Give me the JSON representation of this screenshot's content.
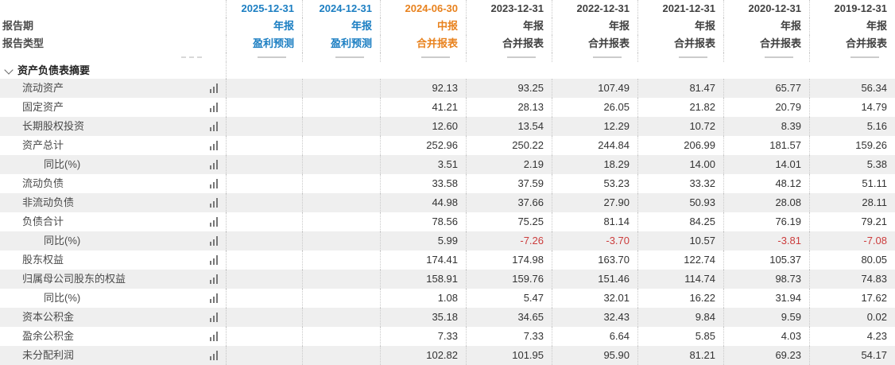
{
  "theme": {
    "accent_blue": "#1b7ec2",
    "accent_orange": "#e8821e",
    "text_dark": "#404040",
    "negative_red": "#cc3c3c",
    "stripe_gray": "#efefef"
  },
  "header": {
    "period_label": "报告期",
    "type_label": "报告类型"
  },
  "columns": [
    {
      "date": "2025-12-31",
      "period": "年报",
      "report_type": "盈利预测",
      "color": "blue"
    },
    {
      "date": "2024-12-31",
      "period": "年报",
      "report_type": "盈利预测",
      "color": "blue"
    },
    {
      "date": "2024-06-30",
      "period": "中报",
      "report_type": "合并报表",
      "color": "orange"
    },
    {
      "date": "2023-12-31",
      "period": "年报",
      "report_type": "合并报表",
      "color": "dark"
    },
    {
      "date": "2022-12-31",
      "period": "年报",
      "report_type": "合并报表",
      "color": "dark"
    },
    {
      "date": "2021-12-31",
      "period": "年报",
      "report_type": "合并报表",
      "color": "dark"
    },
    {
      "date": "2020-12-31",
      "period": "年报",
      "report_type": "合并报表",
      "color": "dark"
    },
    {
      "date": "2019-12-31",
      "period": "年报",
      "report_type": "合并报表",
      "color": "dark"
    }
  ],
  "section": {
    "title": "资产负债表摘要"
  },
  "rows": [
    {
      "label": "流动资产",
      "indent": 1,
      "values": [
        "",
        "",
        "92.13",
        "93.25",
        "107.49",
        "81.47",
        "65.77",
        "56.34"
      ]
    },
    {
      "label": "固定资产",
      "indent": 1,
      "values": [
        "",
        "",
        "41.21",
        "28.13",
        "26.05",
        "21.82",
        "20.79",
        "14.79"
      ]
    },
    {
      "label": "长期股权投资",
      "indent": 1,
      "values": [
        "",
        "",
        "12.60",
        "13.54",
        "12.29",
        "10.72",
        "8.39",
        "5.16"
      ]
    },
    {
      "label": "资产总计",
      "indent": 1,
      "values": [
        "",
        "",
        "252.96",
        "250.22",
        "244.84",
        "206.99",
        "181.57",
        "159.26"
      ]
    },
    {
      "label": "同比(%)",
      "indent": 2,
      "values": [
        "",
        "",
        "3.51",
        "2.19",
        "18.29",
        "14.00",
        "14.01",
        "5.38"
      ]
    },
    {
      "label": "流动负债",
      "indent": 1,
      "values": [
        "",
        "",
        "33.58",
        "37.59",
        "53.23",
        "33.32",
        "48.12",
        "51.11"
      ]
    },
    {
      "label": "非流动负债",
      "indent": 1,
      "values": [
        "",
        "",
        "44.98",
        "37.66",
        "27.90",
        "50.93",
        "28.08",
        "28.11"
      ]
    },
    {
      "label": "负债合计",
      "indent": 1,
      "values": [
        "",
        "",
        "78.56",
        "75.25",
        "81.14",
        "84.25",
        "76.19",
        "79.21"
      ]
    },
    {
      "label": "同比(%)",
      "indent": 2,
      "values": [
        "",
        "",
        "5.99",
        "-7.26",
        "-3.70",
        "10.57",
        "-3.81",
        "-7.08"
      ]
    },
    {
      "label": "股东权益",
      "indent": 1,
      "values": [
        "",
        "",
        "174.41",
        "174.98",
        "163.70",
        "122.74",
        "105.37",
        "80.05"
      ]
    },
    {
      "label": "归属母公司股东的权益",
      "indent": 1,
      "values": [
        "",
        "",
        "158.91",
        "159.76",
        "151.46",
        "114.74",
        "98.73",
        "74.83"
      ]
    },
    {
      "label": "同比(%)",
      "indent": 2,
      "values": [
        "",
        "",
        "1.08",
        "5.47",
        "32.01",
        "16.22",
        "31.94",
        "17.62"
      ]
    },
    {
      "label": "资本公积金",
      "indent": 1,
      "values": [
        "",
        "",
        "35.18",
        "34.65",
        "32.43",
        "9.84",
        "9.59",
        "0.02"
      ]
    },
    {
      "label": "盈余公积金",
      "indent": 1,
      "values": [
        "",
        "",
        "7.33",
        "7.33",
        "6.64",
        "5.85",
        "4.03",
        "4.23"
      ]
    },
    {
      "label": "未分配利润",
      "indent": 1,
      "values": [
        "",
        "",
        "102.82",
        "101.95",
        "95.90",
        "81.21",
        "69.23",
        "54.17"
      ]
    }
  ]
}
